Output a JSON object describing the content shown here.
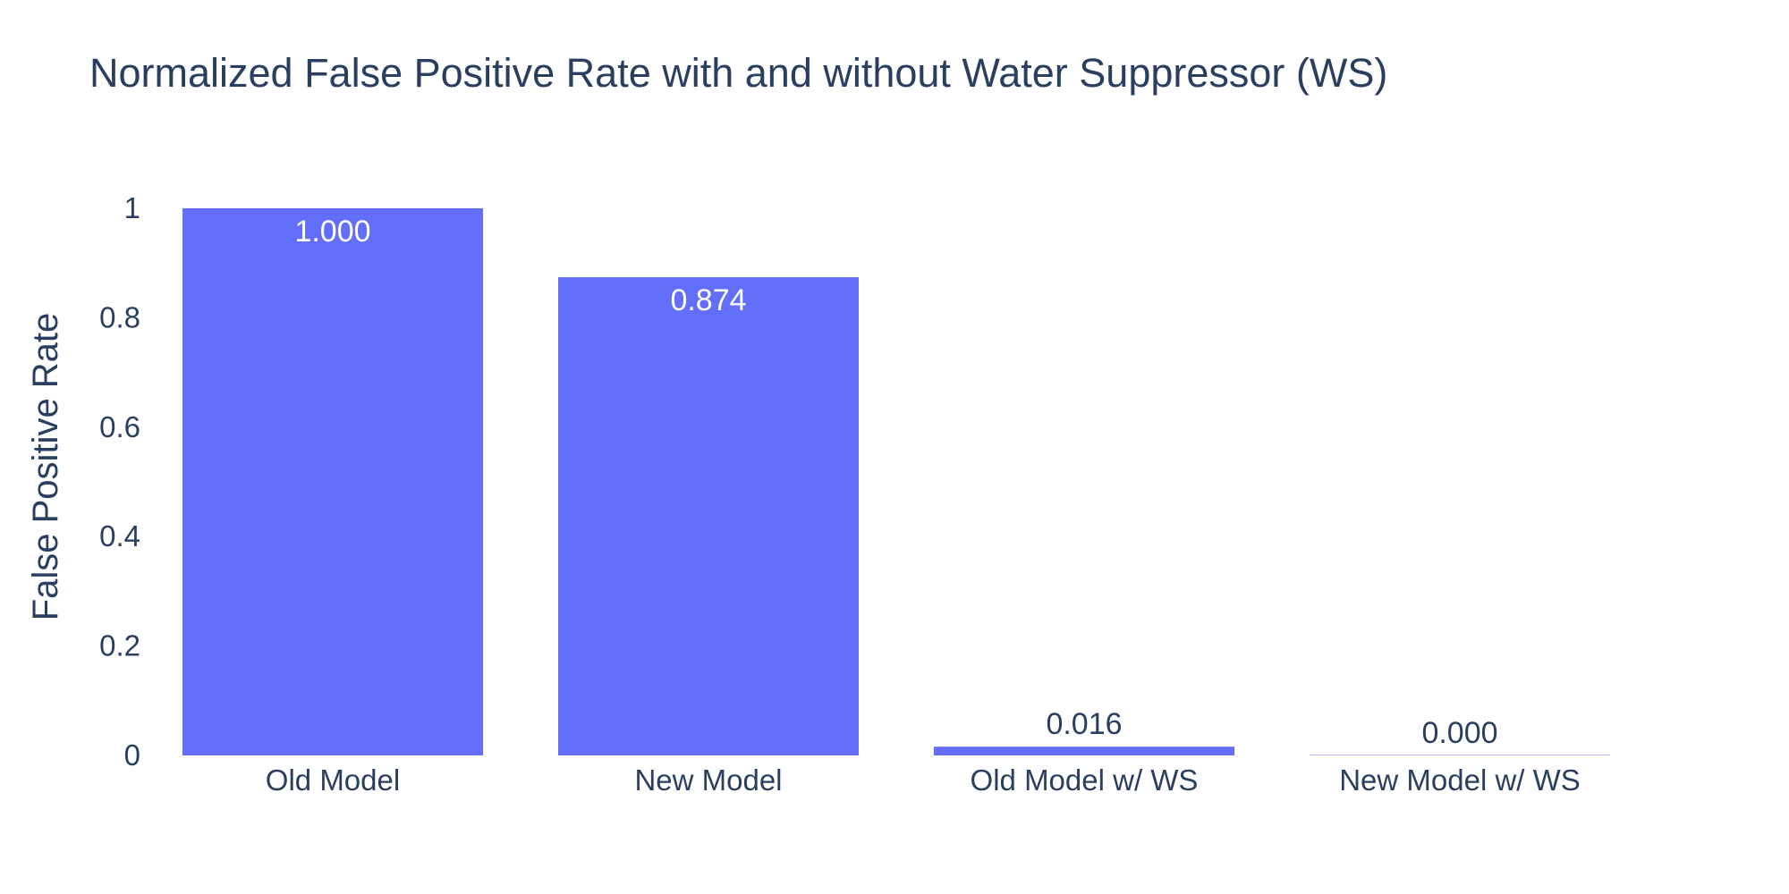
{
  "chart_data": {
    "type": "bar",
    "title": "Normalized False Positive Rate with and without Water Suppressor (WS)",
    "xlabel": "",
    "ylabel": "False Positive Rate",
    "categories": [
      "Old Model",
      "New Model",
      "Old Model w/ WS",
      "New Model w/ WS"
    ],
    "values": [
      1.0,
      0.874,
      0.016,
      0.0
    ],
    "value_labels": [
      "1.000",
      "0.874",
      "0.016",
      "0.000"
    ],
    "ylim": [
      0,
      1
    ],
    "yticks": [
      0,
      0.2,
      0.4,
      0.6,
      0.8,
      1
    ],
    "ytick_labels": [
      "0",
      "0.2",
      "0.4",
      "0.6",
      "0.8",
      "1"
    ],
    "grid": false,
    "legend": "none",
    "bar_color": "#636efa",
    "text_color": "#2a3f5f",
    "label_inside_color": "#ffffff"
  }
}
